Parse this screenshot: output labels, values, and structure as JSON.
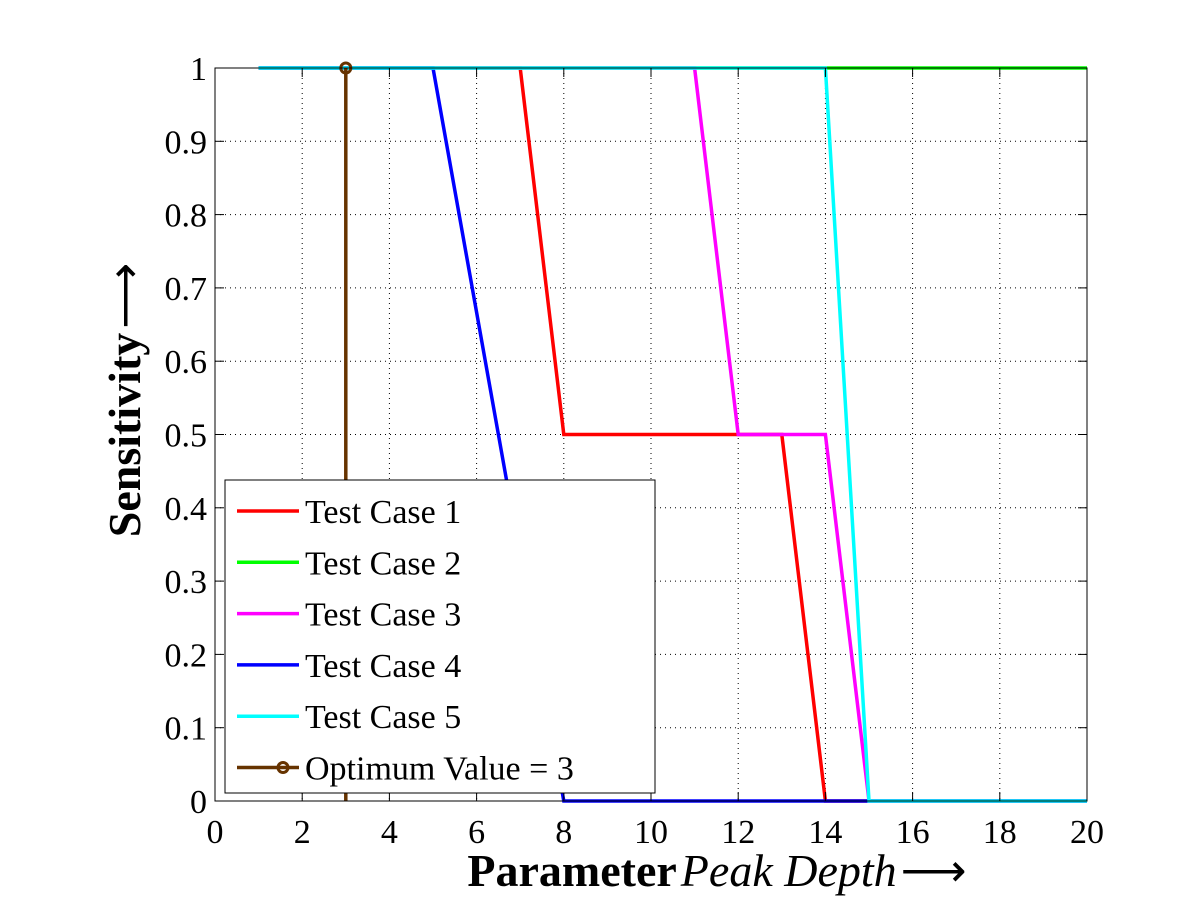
{
  "chart_data": {
    "type": "line",
    "title": "",
    "xlabel": {
      "bold": "Parameter",
      "italic": "Peak Depth",
      "arrow": "⟶"
    },
    "ylabel": {
      "bold": "Sensitivity",
      "arrow": "⟶"
    },
    "xlim": [
      0,
      20
    ],
    "ylim": [
      0,
      1
    ],
    "xticks": [
      0,
      2,
      4,
      6,
      8,
      10,
      12,
      14,
      16,
      18,
      20
    ],
    "yticks": [
      0,
      0.1,
      0.2,
      0.3,
      0.4,
      0.5,
      0.6,
      0.7,
      0.8,
      0.9,
      1
    ],
    "ytick_labels": [
      "0",
      "0.1",
      "0.2",
      "0.3",
      "0.4",
      "0.5",
      "0.6",
      "0.7",
      "0.8",
      "0.9",
      "1"
    ],
    "grid": true,
    "legend_position": "bottom-left",
    "series": [
      {
        "name": "Test Case 1",
        "color": "#ff0000",
        "x": [
          1,
          7,
          8,
          13,
          14,
          20
        ],
        "y": [
          1,
          1,
          0.5,
          0.5,
          0,
          0
        ]
      },
      {
        "name": "Test Case 2",
        "color": "#00ff00",
        "x": [
          1,
          15,
          20
        ],
        "y": [
          1,
          1,
          1
        ]
      },
      {
        "name": "Test Case 3",
        "color": "#ff00ff",
        "x": [
          1,
          11,
          12,
          14,
          15,
          20
        ],
        "y": [
          1,
          1,
          0.5,
          0.5,
          0,
          0
        ]
      },
      {
        "name": "Test Case 4",
        "color": "#0000ff",
        "x": [
          1,
          5,
          8,
          20
        ],
        "y": [
          1,
          1,
          0,
          0
        ]
      },
      {
        "name": "Test Case 5",
        "color": "#00ffff",
        "x": [
          1,
          14,
          15,
          20
        ],
        "y": [
          1,
          1,
          0,
          0
        ]
      }
    ],
    "optimum": {
      "name": "Optimum Value = 3",
      "color": "#663300",
      "x": 3,
      "y": 1
    }
  }
}
